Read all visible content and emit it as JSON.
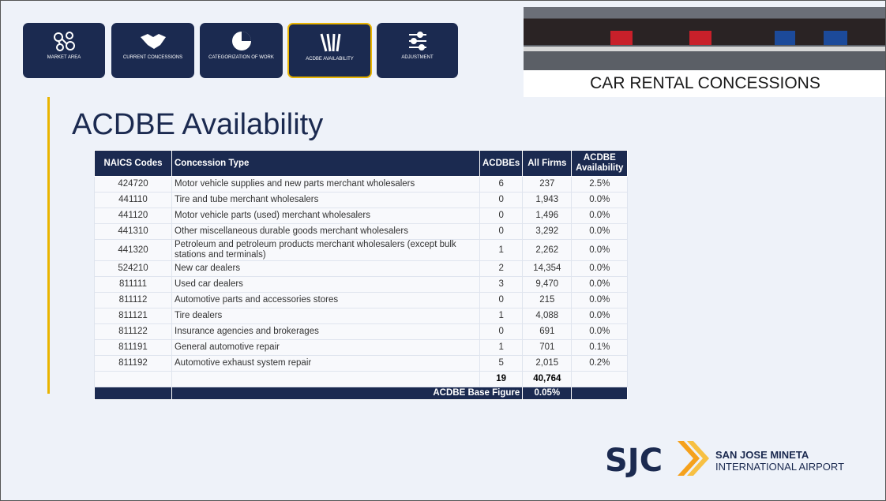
{
  "nav": [
    "MARKET AREA",
    "CURRENT CONCESSIONS",
    "CATEGORIZATION OF WORK",
    "ACDBE AVAILABILITY",
    "ADJUSTMENT"
  ],
  "banner": {
    "title": "CAR RENTAL CONCESSIONS"
  },
  "heading": "ACDBE Availability",
  "table": {
    "columns": [
      "NAICS Codes",
      "Concession Type",
      "ACDBEs",
      "All Firms",
      "ACDBE Availability"
    ],
    "rows": [
      [
        "424720",
        "Motor vehicle supplies and new parts merchant wholesalers",
        "6",
        "237",
        "2.5%"
      ],
      [
        "441110",
        "Tire and tube merchant wholesalers",
        "0",
        "1,943",
        "0.0%"
      ],
      [
        "441120",
        "Motor vehicle parts (used) merchant wholesalers",
        "0",
        "1,496",
        "0.0%"
      ],
      [
        "441310",
        "Other miscellaneous durable goods merchant wholesalers",
        "0",
        "3,292",
        "0.0%"
      ],
      [
        "441320",
        "Petroleum and petroleum products merchant wholesalers (except bulk stations and terminals)",
        "1",
        "2,262",
        "0.0%"
      ],
      [
        "524210",
        "New car dealers",
        "2",
        "14,354",
        "0.0%"
      ],
      [
        "811111",
        "Used car dealers",
        "3",
        "9,470",
        "0.0%"
      ],
      [
        "811112",
        "Automotive parts and accessories stores",
        "0",
        "215",
        "0.0%"
      ],
      [
        "811121",
        "Tire dealers",
        "1",
        "4,088",
        "0.0%"
      ],
      [
        "811122",
        "Insurance agencies and brokerages",
        "0",
        "691",
        "0.0%"
      ],
      [
        "811191",
        "General automotive repair",
        "1",
        "701",
        "0.1%"
      ],
      [
        "811192",
        "Automotive exhaust system repair",
        "5",
        "2,015",
        "0.2%"
      ]
    ],
    "total": [
      "19",
      "40,764"
    ],
    "base": {
      "label": "ACDBE Base Figure",
      "value": "0.05%"
    }
  },
  "logo": {
    "mark": "SJC",
    "line1": "SAN JOSE MINETA",
    "line2": "INTERNATIONAL AIRPORT"
  }
}
